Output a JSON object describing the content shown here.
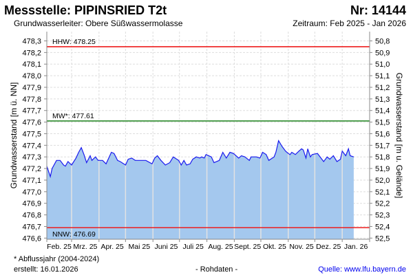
{
  "header": {
    "title": "Messstelle: PIPINSRIED T2t",
    "number": "Nr: 14144",
    "aquifer": "Grundwasserleiter:   Obere Süßwassermolasse",
    "period": "Zeitraum: Feb 2025 - Jan 2026"
  },
  "footer": {
    "note": "* Abflussjahr (2004-2024)",
    "created": "erstellt:  16.01.2026",
    "raw": "- Rohdaten -",
    "source": "Quelle: www.lfu.bayern.de"
  },
  "colors": {
    "fill": "#a4c8ee",
    "line": "#1a1aee",
    "hhw": "#ee1c1c",
    "mw": "#2a8a2a",
    "nnw": "#ee1c1c"
  },
  "chart_data": {
    "type": "area",
    "ylabel": "Grundwasserstand [m ü. NN]",
    "ylabel_right": "Grundwasserstand [m u. Gelände]",
    "ylim": [
      476.59,
      478.38
    ],
    "yticks": [
      "478,3",
      "478,2",
      "478,1",
      "478,0",
      "477,9",
      "477,8",
      "477,7",
      "477,6",
      "477,5",
      "477,4",
      "477,3",
      "477,2",
      "477,1",
      "477,0",
      "476,9",
      "476,8",
      "476,7",
      "476,6"
    ],
    "yticks_right": [
      "50,8",
      "50,9",
      "51,0",
      "51,1",
      "51,2",
      "51,3",
      "51,4",
      "51,5",
      "51,6",
      "51,7",
      "51,8",
      "51,9",
      "52,0",
      "52,1",
      "52,2",
      "52,3",
      "52,4",
      "52,5"
    ],
    "x_unit": "days since 2025-02-01",
    "xlim": [
      0,
      365
    ],
    "month_starts": [
      0,
      28,
      59,
      89,
      120,
      150,
      181,
      212,
      242,
      273,
      303,
      334,
      365
    ],
    "xticks": [
      "Feb. 25",
      "Mrz. 25",
      "Apr. 25",
      "Mai 25",
      "Juni 25",
      "Juli 25",
      "Aug. 25",
      "Sept. 25",
      "Okt. 25",
      "Nov. 25",
      "Dez. 25",
      "Jan. 26"
    ],
    "thresholds": [
      {
        "name": "HHW",
        "label": "HHW: 478.25",
        "value": 478.25
      },
      {
        "name": "MW",
        "label": "MW*: 477.61",
        "value": 477.61
      },
      {
        "name": "NNW",
        "label": "NNW: 476.69",
        "value": 476.69
      }
    ],
    "grid": true,
    "series": [
      {
        "name": "Grundwasserstand",
        "points": [
          [
            0,
            477.22
          ],
          [
            4,
            477.13
          ],
          [
            6,
            477.2
          ],
          [
            11,
            477.27
          ],
          [
            15,
            477.27
          ],
          [
            19,
            477.23
          ],
          [
            21,
            477.22
          ],
          [
            24,
            477.26
          ],
          [
            28,
            477.23
          ],
          [
            33,
            477.29
          ],
          [
            36,
            477.34
          ],
          [
            39,
            477.38
          ],
          [
            42,
            477.32
          ],
          [
            45,
            477.25
          ],
          [
            49,
            477.31
          ],
          [
            51,
            477.27
          ],
          [
            55,
            477.3
          ],
          [
            58,
            477.27
          ],
          [
            63,
            477.27
          ],
          [
            67,
            477.24
          ],
          [
            73,
            477.34
          ],
          [
            76,
            477.33
          ],
          [
            80,
            477.27
          ],
          [
            83,
            477.26
          ],
          [
            89,
            477.23
          ],
          [
            92,
            477.28
          ],
          [
            96,
            477.29
          ],
          [
            100,
            477.27
          ],
          [
            105,
            477.27
          ],
          [
            112,
            477.27
          ],
          [
            119,
            477.24
          ],
          [
            122,
            477.29
          ],
          [
            125,
            477.31
          ],
          [
            129,
            477.27
          ],
          [
            134,
            477.23
          ],
          [
            139,
            477.25
          ],
          [
            143,
            477.3
          ],
          [
            147,
            477.28
          ],
          [
            149,
            477.27
          ],
          [
            152,
            477.23
          ],
          [
            155,
            477.27
          ],
          [
            158,
            477.23
          ],
          [
            162,
            477.24
          ],
          [
            165,
            477.28
          ],
          [
            169,
            477.3
          ],
          [
            173,
            477.29
          ],
          [
            175,
            477.3
          ],
          [
            178,
            477.29
          ],
          [
            180,
            477.32
          ],
          [
            186,
            477.3
          ],
          [
            189,
            477.25
          ],
          [
            195,
            477.27
          ],
          [
            199,
            477.34
          ],
          [
            203,
            477.29
          ],
          [
            207,
            477.34
          ],
          [
            211,
            477.33
          ],
          [
            217,
            477.29
          ],
          [
            220,
            477.31
          ],
          [
            224,
            477.3
          ],
          [
            229,
            477.27
          ],
          [
            231,
            477.3
          ],
          [
            237,
            477.3
          ],
          [
            241,
            477.29
          ],
          [
            244,
            477.34
          ],
          [
            248,
            477.32
          ],
          [
            251,
            477.27
          ],
          [
            257,
            477.3
          ],
          [
            259,
            477.34
          ],
          [
            262,
            477.44
          ],
          [
            266,
            477.39
          ],
          [
            270,
            477.35
          ],
          [
            273,
            477.33
          ],
          [
            275,
            477.32
          ],
          [
            277,
            477.34
          ],
          [
            281,
            477.32
          ],
          [
            285,
            477.35
          ],
          [
            288,
            477.37
          ],
          [
            290,
            477.36
          ],
          [
            293,
            477.29
          ],
          [
            295,
            477.37
          ],
          [
            298,
            477.3
          ],
          [
            300,
            477.32
          ],
          [
            306,
            477.33
          ],
          [
            310,
            477.29
          ],
          [
            313,
            477.26
          ],
          [
            317,
            477.3
          ],
          [
            320,
            477.28
          ],
          [
            324,
            477.31
          ],
          [
            328,
            477.26
          ],
          [
            332,
            477.28
          ],
          [
            334,
            477.35
          ],
          [
            338,
            477.31
          ],
          [
            341,
            477.37
          ],
          [
            343,
            477.31
          ],
          [
            347,
            477.3
          ]
        ]
      }
    ]
  }
}
